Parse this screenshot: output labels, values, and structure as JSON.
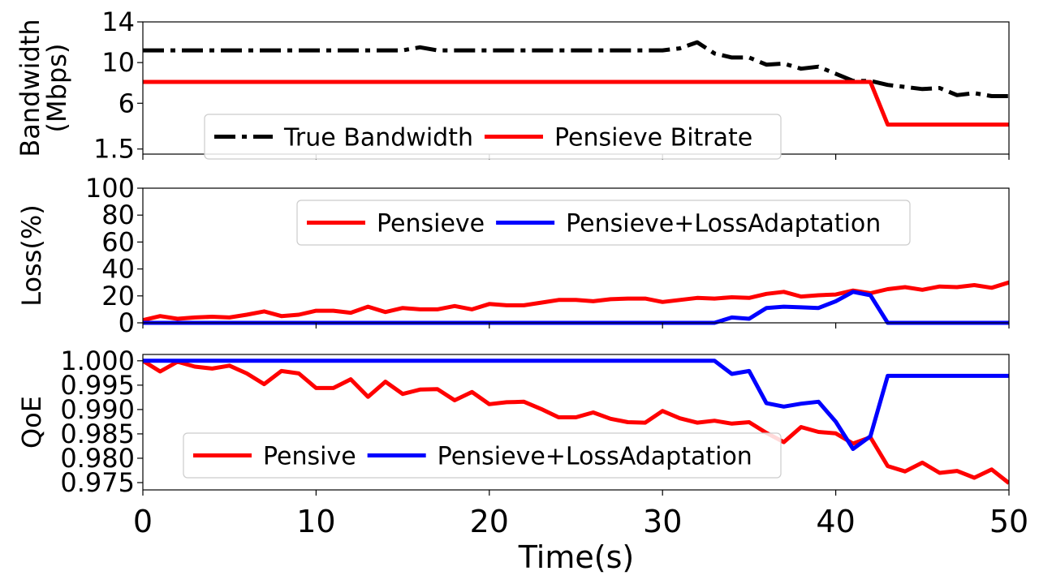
{
  "xlabel": "Time(s)",
  "x_ticks": [
    0,
    10,
    20,
    30,
    40,
    50
  ],
  "chart_data": [
    {
      "type": "line",
      "ylabel_lines": [
        "Bandwidth",
        "(Mbps)"
      ],
      "ylim": [
        1.0,
        14.0
      ],
      "xlim": [
        0,
        50
      ],
      "y_ticks": [
        "1.5",
        "6",
        "10",
        "14"
      ],
      "y_tick_values": [
        1.5,
        6,
        10,
        14
      ],
      "legend_placement": "lower-center",
      "series": [
        {
          "name": "True Bandwidth",
          "color": "#000000",
          "style": "dashdot",
          "x": [
            0,
            1,
            2,
            3,
            4,
            5,
            6,
            7,
            8,
            9,
            10,
            11,
            12,
            13,
            14,
            15,
            16,
            17,
            18,
            19,
            20,
            21,
            22,
            23,
            24,
            25,
            26,
            27,
            28,
            29,
            30,
            31,
            32,
            33,
            34,
            35,
            36,
            37,
            38,
            39,
            40,
            41,
            42,
            43,
            44,
            45,
            46,
            47,
            48,
            49,
            50
          ],
          "values": [
            11.2,
            11.2,
            11.2,
            11.2,
            11.2,
            11.2,
            11.2,
            11.2,
            11.2,
            11.2,
            11.2,
            11.2,
            11.2,
            11.2,
            11.2,
            11.2,
            11.5,
            11.2,
            11.2,
            11.2,
            11.2,
            11.2,
            11.2,
            11.2,
            11.2,
            11.2,
            11.2,
            11.2,
            11.2,
            11.2,
            11.2,
            11.4,
            12.0,
            10.9,
            10.5,
            10.5,
            9.8,
            9.9,
            9.4,
            9.6,
            8.9,
            8.2,
            8.2,
            7.8,
            7.6,
            7.4,
            7.5,
            6.8,
            7.0,
            6.7,
            6.7
          ]
        },
        {
          "name": "Pensieve Bitrate",
          "color": "#ff0000",
          "style": "solid",
          "x": [
            0,
            1,
            2,
            3,
            4,
            5,
            6,
            7,
            8,
            9,
            10,
            11,
            12,
            13,
            14,
            15,
            16,
            17,
            18,
            19,
            20,
            21,
            22,
            23,
            24,
            25,
            26,
            27,
            28,
            29,
            30,
            31,
            32,
            33,
            34,
            35,
            36,
            37,
            38,
            39,
            40,
            41,
            42,
            43,
            44,
            45,
            46,
            47,
            48,
            49,
            50
          ],
          "values": [
            8.1,
            8.1,
            8.1,
            8.1,
            8.1,
            8.1,
            8.1,
            8.1,
            8.1,
            8.1,
            8.1,
            8.1,
            8.1,
            8.1,
            8.1,
            8.1,
            8.1,
            8.1,
            8.1,
            8.1,
            8.1,
            8.1,
            8.1,
            8.1,
            8.1,
            8.1,
            8.1,
            8.1,
            8.1,
            8.1,
            8.1,
            8.1,
            8.1,
            8.1,
            8.1,
            8.1,
            8.1,
            8.1,
            8.1,
            8.1,
            8.1,
            8.1,
            8.1,
            3.9,
            3.9,
            3.9,
            3.9,
            3.9,
            3.9,
            3.9,
            3.9
          ]
        }
      ]
    },
    {
      "type": "line",
      "ylabel_lines": [
        "Loss(%)"
      ],
      "ylim": [
        0,
        100
      ],
      "xlim": [
        0,
        50
      ],
      "y_ticks": [
        "0",
        "20",
        "40",
        "60",
        "80",
        "100"
      ],
      "y_tick_values": [
        0,
        20,
        40,
        60,
        80,
        100
      ],
      "legend_placement": "upper-center",
      "series": [
        {
          "name": "Pensieve",
          "color": "#ff0000",
          "style": "solid",
          "x": [
            0,
            1,
            2,
            3,
            4,
            5,
            6,
            7,
            8,
            9,
            10,
            11,
            12,
            13,
            14,
            15,
            16,
            17,
            18,
            19,
            20,
            21,
            22,
            23,
            24,
            25,
            26,
            27,
            28,
            29,
            30,
            31,
            32,
            33,
            34,
            35,
            36,
            37,
            38,
            39,
            40,
            41,
            42,
            43,
            44,
            45,
            46,
            47,
            48,
            49,
            50
          ],
          "values": [
            2,
            5,
            3,
            4,
            4.5,
            4,
            6,
            8.5,
            5,
            6,
            9,
            9,
            7.5,
            12,
            8,
            11,
            10,
            10,
            12.5,
            10,
            14,
            13,
            13,
            15,
            17,
            17,
            16,
            17.5,
            18,
            18,
            15.5,
            17,
            18.5,
            18,
            19,
            18.5,
            21.5,
            23,
            19.5,
            20.5,
            21,
            24,
            22,
            25,
            26.5,
            24.5,
            27,
            26.5,
            28,
            26,
            30
          ]
        },
        {
          "name": "Pensieve+LossAdaptation",
          "color": "#0000ff",
          "style": "solid",
          "x": [
            0,
            1,
            2,
            3,
            4,
            5,
            6,
            7,
            8,
            9,
            10,
            11,
            12,
            13,
            14,
            15,
            16,
            17,
            18,
            19,
            20,
            21,
            22,
            23,
            24,
            25,
            26,
            27,
            28,
            29,
            30,
            31,
            32,
            33,
            34,
            35,
            36,
            37,
            38,
            39,
            40,
            41,
            42,
            43,
            44,
            45,
            46,
            47,
            48,
            49,
            50
          ],
          "values": [
            0,
            0,
            0,
            0,
            0,
            0,
            0,
            0,
            0,
            0,
            0,
            0,
            0,
            0,
            0,
            0,
            0,
            0,
            0,
            0,
            0,
            0,
            0,
            0,
            0,
            0,
            0,
            0,
            0,
            0,
            0,
            0,
            0,
            0,
            4,
            3,
            11,
            12,
            11.5,
            11,
            16,
            23,
            20.5,
            0,
            0,
            0,
            0,
            0,
            0,
            0,
            0
          ]
        }
      ]
    },
    {
      "type": "line",
      "ylabel_lines": [
        "QoE"
      ],
      "ylim": [
        0.9735,
        1.0013
      ],
      "xlim": [
        0,
        50
      ],
      "y_ticks": [
        "0.975",
        "0.980",
        "0.985",
        "0.990",
        "0.995",
        "1.000"
      ],
      "y_tick_values": [
        0.975,
        0.98,
        0.985,
        0.99,
        0.995,
        1.0
      ],
      "legend_placement": "lower-center",
      "series": [
        {
          "name": "Pensive",
          "color": "#ff0000",
          "style": "solid",
          "x": [
            0,
            1,
            2,
            3,
            4,
            5,
            6,
            7,
            8,
            9,
            10,
            11,
            12,
            13,
            14,
            15,
            16,
            17,
            18,
            19,
            20,
            21,
            22,
            23,
            24,
            25,
            26,
            27,
            28,
            29,
            30,
            31,
            32,
            33,
            34,
            35,
            36,
            37,
            38,
            39,
            40,
            41,
            42,
            43,
            44,
            45,
            46,
            47,
            48,
            49,
            50
          ],
          "values": [
            1.0,
            0.9978,
            0.9998,
            0.9988,
            0.9984,
            0.999,
            0.9974,
            0.9952,
            0.9979,
            0.9974,
            0.9944,
            0.9944,
            0.9962,
            0.9926,
            0.9957,
            0.9932,
            0.9941,
            0.9942,
            0.9919,
            0.9936,
            0.9911,
            0.9915,
            0.9916,
            0.9901,
            0.9884,
            0.9884,
            0.9894,
            0.9881,
            0.9874,
            0.9873,
            0.9897,
            0.9882,
            0.9873,
            0.9877,
            0.9871,
            0.9874,
            0.9852,
            0.9833,
            0.9864,
            0.9854,
            0.9851,
            0.983,
            0.9843,
            0.9784,
            0.9773,
            0.9791,
            0.977,
            0.9774,
            0.976,
            0.9777,
            0.9749
          ]
        },
        {
          "name": "Pensieve+LossAdaptation",
          "color": "#0000ff",
          "style": "solid",
          "x": [
            0,
            1,
            2,
            3,
            4,
            5,
            6,
            7,
            8,
            9,
            10,
            11,
            12,
            13,
            14,
            15,
            16,
            17,
            18,
            19,
            20,
            21,
            22,
            23,
            24,
            25,
            26,
            27,
            28,
            29,
            30,
            31,
            32,
            33,
            34,
            35,
            36,
            37,
            38,
            39,
            40,
            41,
            42,
            43,
            44,
            45,
            46,
            47,
            48,
            49,
            50
          ],
          "values": [
            1.0,
            1.0,
            1.0,
            1.0,
            1.0,
            1.0,
            1.0,
            1.0,
            1.0,
            1.0,
            1.0,
            1.0,
            1.0,
            1.0,
            1.0,
            1.0,
            1.0,
            1.0,
            1.0,
            1.0,
            1.0,
            1.0,
            1.0,
            1.0,
            1.0,
            1.0,
            1.0,
            1.0,
            1.0,
            1.0,
            1.0,
            1.0,
            1.0,
            1.0,
            0.9973,
            0.9979,
            0.9913,
            0.9906,
            0.9912,
            0.9916,
            0.9875,
            0.9819,
            0.9845,
            0.9969,
            0.9969,
            0.9969,
            0.9969,
            0.9969,
            0.9969,
            0.9969,
            0.9969
          ]
        }
      ]
    }
  ]
}
